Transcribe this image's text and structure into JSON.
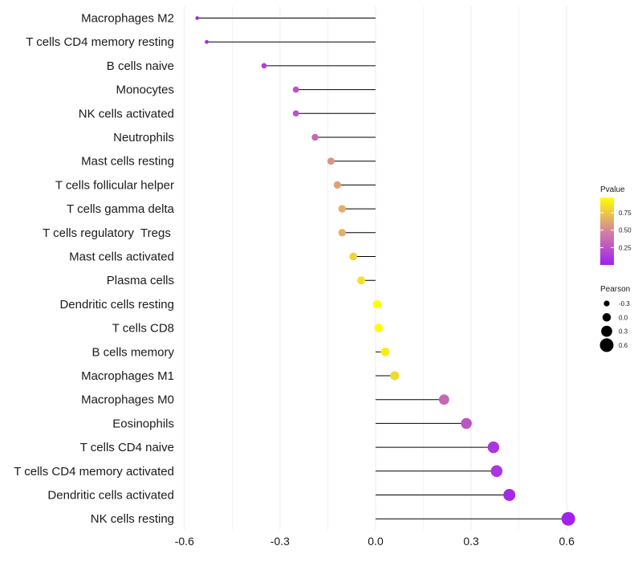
{
  "chart_data": {
    "type": "lollipop",
    "title": "",
    "xlabel": "",
    "ylabel": "",
    "xlim": [
      -0.62,
      0.62
    ],
    "xticks": [
      -0.6,
      -0.3,
      0.0,
      0.3,
      0.6
    ],
    "xtick_labels": [
      "-0.6",
      "-0.3",
      "0.0",
      "0.3",
      "0.6"
    ],
    "grid": true,
    "baseline": 0,
    "categories": [
      "Macrophages M2",
      "T cells CD4 memory resting",
      "B cells naive",
      "Monocytes",
      "NK cells activated",
      "Neutrophils",
      "Mast cells resting",
      "T cells follicular helper",
      "T cells gamma delta",
      "T cells regulatory  Tregs ",
      "Mast cells activated",
      "Plasma cells",
      "Dendritic cells resting",
      "T cells CD8",
      "B cells memory",
      "Macrophages M1",
      "Macrophages M0",
      "Eosinophils",
      "T cells CD4 naive",
      "T cells CD4 memory activated",
      "Dendritic cells activated",
      "NK cells resting"
    ],
    "pearson": [
      -0.56,
      -0.53,
      -0.35,
      -0.25,
      -0.25,
      -0.19,
      -0.14,
      -0.12,
      -0.105,
      -0.105,
      -0.07,
      -0.045,
      0.005,
      0.01,
      0.03,
      0.06,
      0.215,
      0.285,
      0.37,
      0.38,
      0.42,
      0.605
    ],
    "pvalue": [
      0.01,
      0.03,
      0.15,
      0.25,
      0.25,
      0.35,
      0.55,
      0.6,
      0.65,
      0.65,
      0.8,
      0.85,
      0.97,
      0.95,
      0.9,
      0.82,
      0.35,
      0.25,
      0.1,
      0.1,
      0.05,
      0.01
    ],
    "legend": {
      "color_title": "Pvalue",
      "color_ticks": [
        0.25,
        0.5,
        0.75
      ],
      "color_tick_labels": [
        "0.25",
        "0.50",
        "0.75"
      ],
      "color_range": [
        0.0,
        0.97
      ],
      "color_low": "#a020f0",
      "color_mid": "#d4849c",
      "color_high": "#ffff00",
      "size_title": "Pearson",
      "size_values": [
        -0.3,
        0.0,
        0.3,
        0.6
      ],
      "size_labels": [
        "-0.3",
        "0.0",
        "0.3",
        "0.6"
      ],
      "placement": "right"
    }
  }
}
